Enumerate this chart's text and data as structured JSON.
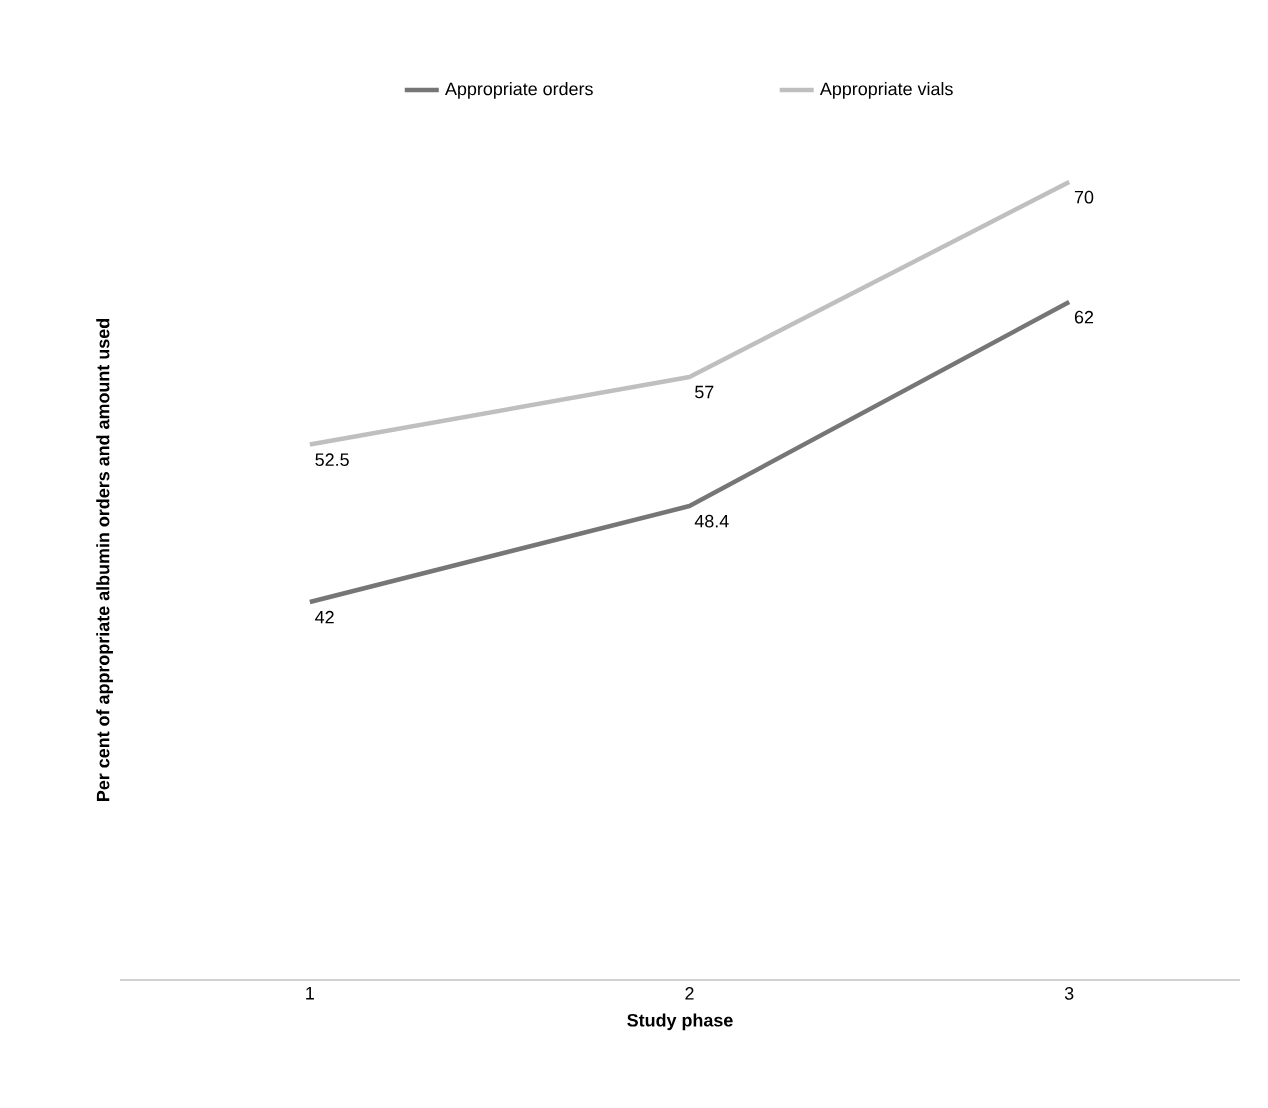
{
  "chart_data": {
    "type": "line",
    "xlabel": "Study phase",
    "ylabel": "Per cent of appropriate albumin orders and amount used",
    "categories": [
      "1",
      "2",
      "3"
    ],
    "series": [
      {
        "name": "Appropriate orders",
        "color": "#767676",
        "values": [
          42,
          48.4,
          62
        ]
      },
      {
        "name": "Appropriate vials",
        "color": "#bfbfbf",
        "values": [
          52.5,
          57,
          70
        ]
      }
    ],
    "data_labels": true,
    "legend": "top",
    "marker": "none",
    "line_style": "solid"
  }
}
